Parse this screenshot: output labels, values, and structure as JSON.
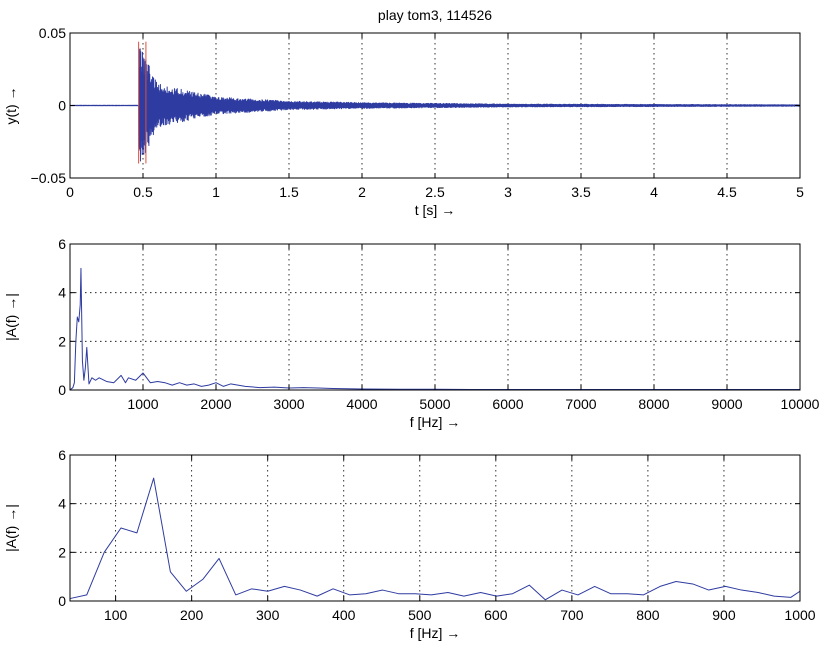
{
  "figure_title": "play tom3, 114526",
  "colors": {
    "series": "#2e3ba0",
    "marker": "#e0503a",
    "axes": "#000000",
    "background": "#ffffff"
  },
  "chart_data": [
    {
      "type": "line",
      "title": "play tom3, 114526",
      "xlabel": "t [s] →",
      "ylabel": "y(t)  →",
      "xlim": [
        0,
        5
      ],
      "ylim": [
        -0.05,
        0.05
      ],
      "xticks": [
        0,
        0.5,
        1,
        1.5,
        2,
        2.5,
        3,
        3.5,
        4,
        4.5,
        5
      ],
      "xtick_labels": [
        "0",
        "0.5",
        "1",
        "1.5",
        "2",
        "2.5",
        "3",
        "3.5",
        "4",
        "4.5",
        "5"
      ],
      "yticks": [
        -0.05,
        0,
        0.05
      ],
      "ytick_labels": [
        "−0.05",
        "0",
        "0.05"
      ],
      "grid": true,
      "signal": {
        "onset_s": 0.47,
        "peak_amplitude": 0.043,
        "decay_envelope": [
          {
            "t": 0.47,
            "amp": 0.043
          },
          {
            "t": 0.6,
            "amp": 0.015
          },
          {
            "t": 1.0,
            "amp": 0.006
          },
          {
            "t": 1.5,
            "amp": 0.003
          },
          {
            "t": 2.0,
            "amp": 0.002
          },
          {
            "t": 3.0,
            "amp": 0.001
          },
          {
            "t": 5.0,
            "amp": 0.0005
          }
        ]
      },
      "analysis_window": {
        "start_s": 0.47,
        "end_s": 0.52,
        "ymin": -0.04,
        "ymax": 0.044
      }
    },
    {
      "type": "line",
      "xlabel": "f [Hz] →",
      "ylabel": "|A(f)  →|",
      "xlim": [
        0,
        10000
      ],
      "ylim": [
        0,
        6
      ],
      "xticks": [
        1000,
        2000,
        3000,
        4000,
        5000,
        6000,
        7000,
        8000,
        9000,
        10000
      ],
      "xtick_labels": [
        "1000",
        "2000",
        "3000",
        "4000",
        "5000",
        "6000",
        "7000",
        "8000",
        "9000",
        "10000"
      ],
      "yticks": [
        0,
        2,
        4,
        6
      ],
      "ytick_labels": [
        "0",
        "2",
        "4",
        "6"
      ],
      "grid": true,
      "x": [
        0,
        40,
        60,
        80,
        100,
        120,
        140,
        150,
        170,
        190,
        210,
        230,
        260,
        300,
        350,
        400,
        500,
        600,
        700,
        760,
        800,
        900,
        1000,
        1050,
        1100,
        1200,
        1300,
        1400,
        1500,
        1600,
        1700,
        1800,
        1900,
        2000,
        2100,
        2200,
        2300,
        2400,
        2600,
        2800,
        3000,
        3200,
        3400,
        3600,
        3800,
        4000,
        4500,
        5000,
        5500,
        6000,
        7000,
        8000,
        9000,
        10000
      ],
      "y": [
        0,
        0.1,
        0.3,
        2.0,
        3.0,
        2.8,
        3.5,
        5.0,
        1.2,
        0.4,
        0.9,
        1.75,
        0.25,
        0.5,
        0.4,
        0.5,
        0.35,
        0.3,
        0.6,
        0.3,
        0.5,
        0.4,
        0.7,
        0.5,
        0.3,
        0.35,
        0.3,
        0.2,
        0.3,
        0.2,
        0.25,
        0.15,
        0.2,
        0.3,
        0.15,
        0.25,
        0.2,
        0.15,
        0.1,
        0.12,
        0.08,
        0.1,
        0.08,
        0.06,
        0.05,
        0.04,
        0.03,
        0.03,
        0.02,
        0.02,
        0.02,
        0.02,
        0.02,
        0.02
      ]
    },
    {
      "type": "line",
      "xlabel": "f [Hz] →",
      "ylabel": "|A(f)  →|",
      "xlim": [
        40,
        1000
      ],
      "ylim": [
        0,
        6
      ],
      "xticks": [
        100,
        200,
        300,
        400,
        500,
        600,
        700,
        800,
        900,
        1000
      ],
      "xtick_labels": [
        "100",
        "200",
        "300",
        "400",
        "500",
        "600",
        "700",
        "800",
        "900",
        "1000"
      ],
      "yticks": [
        0,
        2,
        4,
        6
      ],
      "ytick_labels": [
        "0",
        "2",
        "4",
        "6"
      ],
      "grid": true,
      "x": [
        40,
        62,
        85,
        107,
        128,
        150,
        172,
        193,
        215,
        236,
        258,
        279,
        300,
        322,
        343,
        365,
        386,
        408,
        429,
        451,
        472,
        494,
        515,
        537,
        558,
        580,
        601,
        622,
        644,
        665,
        687,
        708,
        730,
        751,
        773,
        794,
        816,
        837,
        859,
        880,
        902,
        923,
        945,
        966,
        988,
        1000
      ],
      "y": [
        0.1,
        0.25,
        2.0,
        3.0,
        2.8,
        5.05,
        1.2,
        0.4,
        0.9,
        1.75,
        0.25,
        0.5,
        0.4,
        0.6,
        0.45,
        0.2,
        0.5,
        0.25,
        0.3,
        0.45,
        0.3,
        0.3,
        0.25,
        0.35,
        0.2,
        0.35,
        0.2,
        0.3,
        0.65,
        0.05,
        0.45,
        0.25,
        0.6,
        0.3,
        0.3,
        0.25,
        0.6,
        0.8,
        0.7,
        0.45,
        0.6,
        0.45,
        0.35,
        0.2,
        0.15,
        0.4
      ]
    }
  ]
}
